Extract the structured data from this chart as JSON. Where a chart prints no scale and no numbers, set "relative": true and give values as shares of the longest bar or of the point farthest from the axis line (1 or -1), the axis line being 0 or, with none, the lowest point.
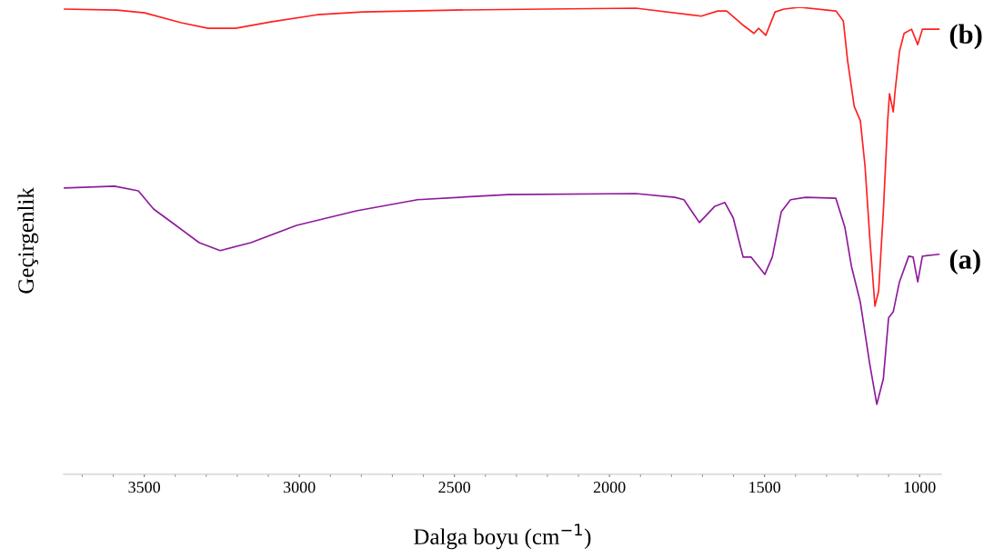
{
  "chart_data": {
    "type": "line",
    "relative": true,
    "xlabel": "Dalga boyu (cm$^{−1}$)",
    "ylabel": "Geçirgenlik",
    "xlim": [
      3760,
      930
    ],
    "xticks": [
      3500,
      3000,
      2500,
      2000,
      1500,
      1000
    ],
    "tick_labels": "x",
    "grid": false,
    "legend": false,
    "marker": "none",
    "line_style": "solid",
    "series": [
      {
        "name": "(b)",
        "color": "#ff2020",
        "x": [
          3757,
          3587,
          3499,
          3381,
          3294,
          3206,
          3088,
          2942,
          2795,
          2502,
          2208,
          1915,
          1704,
          1651,
          1622,
          1572,
          1534,
          1519,
          1496,
          1466,
          1437,
          1387,
          1270,
          1246,
          1232,
          1211,
          1191,
          1176,
          1161,
          1144,
          1132,
          1117,
          1103,
          1097,
          1085,
          1079,
          1065,
          1050,
          1026,
          1006,
          991,
          938
        ],
        "values": [
          0.996,
          0.994,
          0.988,
          0.967,
          0.955,
          0.955,
          0.969,
          0.984,
          0.99,
          0.994,
          0.996,
          0.998,
          0.981,
          0.992,
          0.992,
          0.963,
          0.944,
          0.955,
          0.94,
          0.99,
          0.996,
          1.0,
          0.992,
          0.971,
          0.885,
          0.788,
          0.757,
          0.66,
          0.51,
          0.36,
          0.393,
          0.562,
          0.757,
          0.815,
          0.776,
          0.821,
          0.905,
          0.944,
          0.953,
          0.92,
          0.953,
          0.953
        ]
      },
      {
        "name": "(a)",
        "color": "#8e1a9c",
        "x": [
          3757,
          3596,
          3519,
          3470,
          3402,
          3323,
          3255,
          3156,
          3009,
          2816,
          2619,
          2326,
          1915,
          1789,
          1760,
          1710,
          1660,
          1628,
          1601,
          1569,
          1543,
          1499,
          1475,
          1446,
          1416,
          1367,
          1270,
          1241,
          1220,
          1191,
          1161,
          1138,
          1117,
          1100,
          1085,
          1065,
          1035,
          1021,
          1006,
          991,
          938
        ],
        "values": [
          0.613,
          0.617,
          0.607,
          0.568,
          0.535,
          0.496,
          0.479,
          0.496,
          0.533,
          0.564,
          0.588,
          0.599,
          0.601,
          0.593,
          0.588,
          0.539,
          0.574,
          0.582,
          0.549,
          0.465,
          0.465,
          0.428,
          0.465,
          0.562,
          0.588,
          0.593,
          0.591,
          0.529,
          0.446,
          0.368,
          0.237,
          0.15,
          0.204,
          0.335,
          0.348,
          0.412,
          0.467,
          0.465,
          0.412,
          0.467,
          0.471
        ]
      }
    ]
  }
}
